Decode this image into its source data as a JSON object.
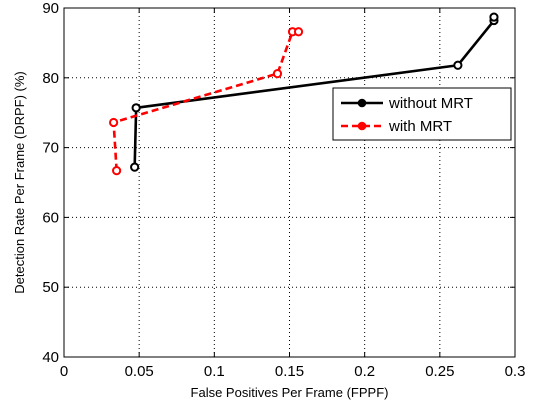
{
  "chart_data": {
    "type": "line",
    "xlabel": "False Positives Per Frame (FPPF)",
    "ylabel": "Detection Rate Per Frame (DRPF) (%)",
    "xlim": [
      0,
      0.3
    ],
    "ylim": [
      40,
      90
    ],
    "xticks": [
      0,
      0.05,
      0.1,
      0.15,
      0.2,
      0.25,
      0.3
    ],
    "xtick_labels": [
      "0",
      "0.05",
      "0.1",
      "0.15",
      "0.2",
      "0.25",
      "0.3"
    ],
    "yticks": [
      40,
      50,
      60,
      70,
      80,
      90
    ],
    "ytick_labels": [
      "40",
      "50",
      "60",
      "70",
      "80",
      "90"
    ],
    "grid": true,
    "legend_position": "center-right",
    "series": [
      {
        "name": "without MRT",
        "color": "#000000",
        "line_style": "solid",
        "marker": "circle",
        "points": [
          {
            "x": 0.047,
            "y": 67.2
          },
          {
            "x": 0.048,
            "y": 75.7
          },
          {
            "x": 0.262,
            "y": 81.8
          },
          {
            "x": 0.286,
            "y": 88.2
          },
          {
            "x": 0.286,
            "y": 88.7
          }
        ]
      },
      {
        "name": "with MRT",
        "color": "#ff0000",
        "line_style": "dashed",
        "marker": "circle",
        "points": [
          {
            "x": 0.035,
            "y": 66.7
          },
          {
            "x": 0.033,
            "y": 73.6
          },
          {
            "x": 0.142,
            "y": 80.6
          },
          {
            "x": 0.152,
            "y": 86.6
          },
          {
            "x": 0.156,
            "y": 86.6
          }
        ]
      }
    ]
  }
}
